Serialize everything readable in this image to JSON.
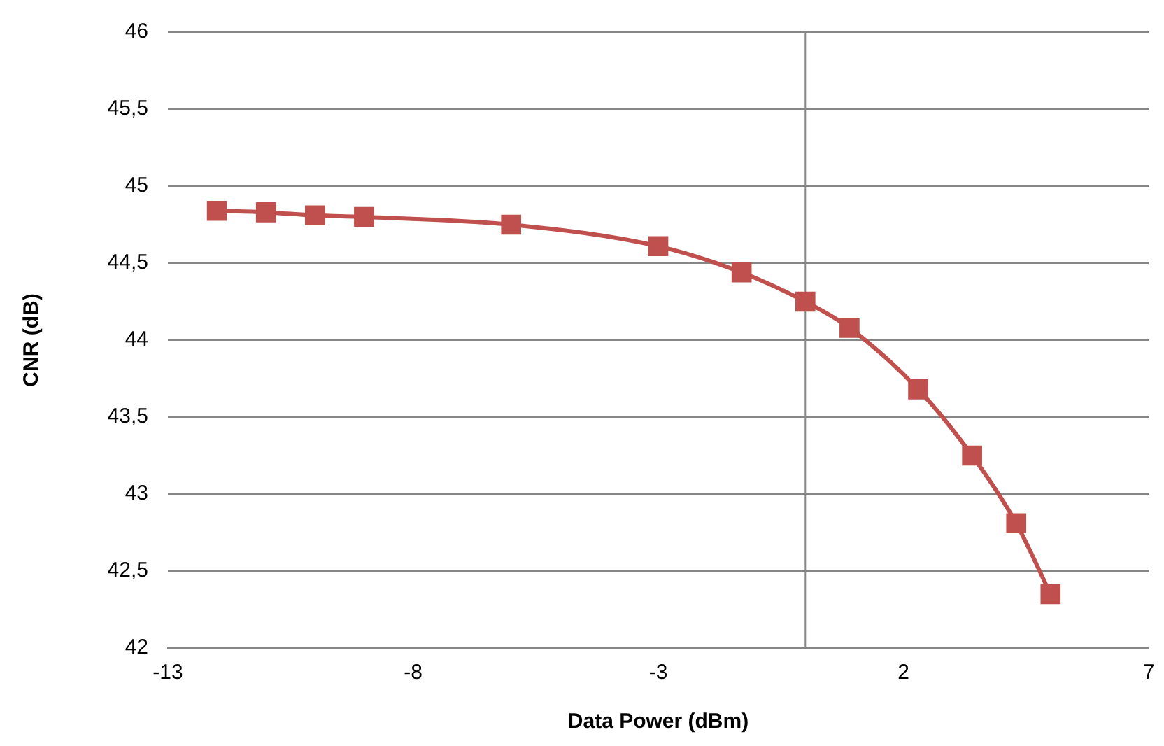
{
  "chart_data": {
    "type": "line",
    "xlabel": "Data Power (dBm)",
    "ylabel": "CNR (dB)",
    "x": [
      -12,
      -11,
      -10,
      -9,
      -6,
      -3,
      -1.3,
      0,
      0.9,
      2.3,
      3.4,
      4.3,
      5
    ],
    "series": [
      {
        "color": "#c0504d",
        "values": [
          44.84,
          44.83,
          44.81,
          44.8,
          44.75,
          44.61,
          44.44,
          44.25,
          44.08,
          43.68,
          43.25,
          42.81,
          42.35
        ]
      }
    ],
    "xlim": [
      -13,
      7
    ],
    "xticks": [
      -13,
      -8,
      -3,
      2,
      7
    ],
    "ylim": [
      42,
      46
    ],
    "yticks": [
      42,
      {
        "value": 42.5,
        "label": "42,5"
      },
      43,
      {
        "value": 43.5,
        "label": "43,5"
      },
      44,
      {
        "value": 44.5,
        "label": "44,5"
      },
      45,
      {
        "value": 45.5,
        "label": "45,5"
      },
      46
    ],
    "ref_lines": [
      {
        "axis": "x",
        "value": 0,
        "color": "#868686"
      }
    ],
    "grid": "y",
    "legend": false,
    "marker": "square",
    "line_style": "solid"
  }
}
